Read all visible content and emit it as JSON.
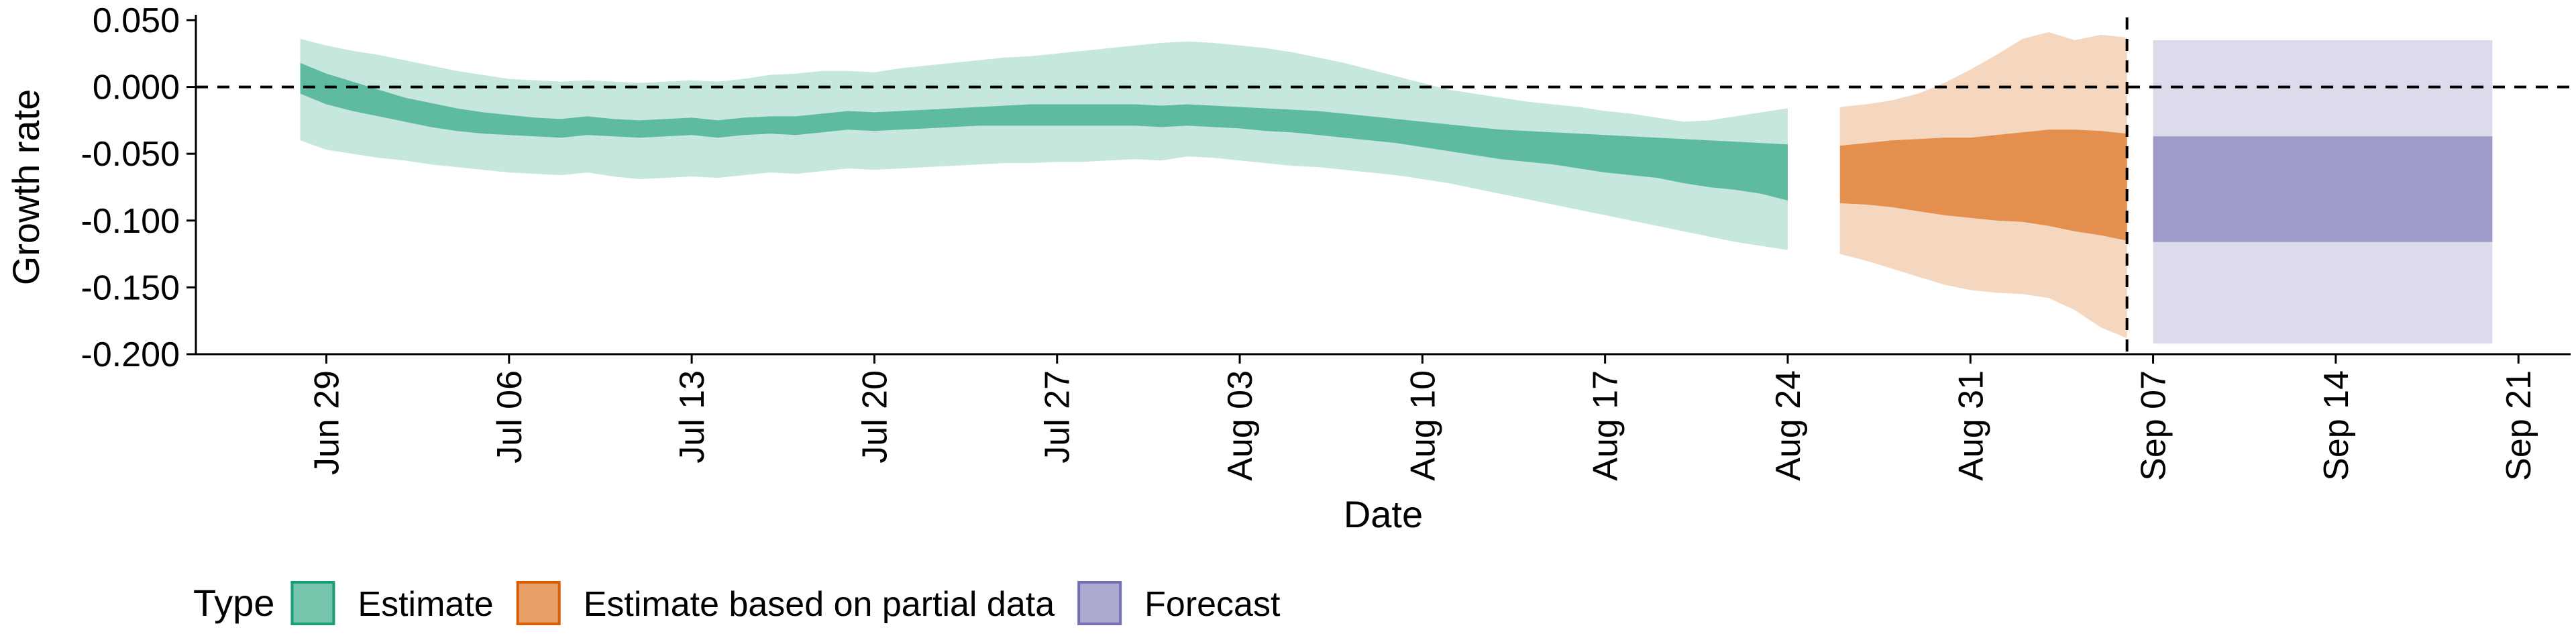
{
  "chart_data": {
    "type": "area",
    "title": "",
    "xlabel": "Date",
    "ylabel": "Growth rate",
    "ylim": [
      -0.2,
      0.05
    ],
    "y_ticks": [
      0.05,
      0.0,
      -0.05,
      -0.1,
      -0.15,
      -0.2
    ],
    "y_tick_labels": [
      "0.050",
      "0.000",
      "-0.050",
      "-0.100",
      "-0.150",
      "-0.200"
    ],
    "x_range": [
      "2020-06-24",
      "2020-09-23"
    ],
    "x_ticks": [
      "2020-06-29",
      "2020-07-06",
      "2020-07-13",
      "2020-07-20",
      "2020-07-27",
      "2020-08-03",
      "2020-08-10",
      "2020-08-17",
      "2020-08-24",
      "2020-08-31",
      "2020-09-07",
      "2020-09-14",
      "2020-09-21"
    ],
    "x_tick_labels": [
      "Jun 29",
      "Jul 06",
      "Jul 13",
      "Jul 20",
      "Jul 27",
      "Aug 03",
      "Aug 10",
      "Aug 17",
      "Aug 24",
      "Aug 31",
      "Sep 07",
      "Sep 14",
      "Sep 21"
    ],
    "reference_lines": {
      "horizontal_y": 0.0,
      "vertical_date": "2020-09-06"
    },
    "legend": {
      "title": "Type",
      "placement": "bottom",
      "entries": [
        {
          "key": "estimate",
          "label": "Estimate"
        },
        {
          "key": "partial",
          "label": "Estimate based on partial data"
        },
        {
          "key": "forecast",
          "label": "Forecast"
        }
      ]
    },
    "colors": {
      "estimate": "#1b9e77",
      "partial": "#d95f02",
      "forecast": "#7570b3"
    },
    "series": [
      {
        "key": "estimate",
        "x": [
          "2020-06-28",
          "2020-06-29",
          "2020-06-30",
          "2020-07-01",
          "2020-07-02",
          "2020-07-03",
          "2020-07-04",
          "2020-07-05",
          "2020-07-06",
          "2020-07-07",
          "2020-07-08",
          "2020-07-09",
          "2020-07-10",
          "2020-07-11",
          "2020-07-12",
          "2020-07-13",
          "2020-07-14",
          "2020-07-15",
          "2020-07-16",
          "2020-07-17",
          "2020-07-18",
          "2020-07-19",
          "2020-07-20",
          "2020-07-21",
          "2020-07-22",
          "2020-07-23",
          "2020-07-24",
          "2020-07-25",
          "2020-07-26",
          "2020-07-27",
          "2020-07-28",
          "2020-07-29",
          "2020-07-30",
          "2020-07-31",
          "2020-08-01",
          "2020-08-02",
          "2020-08-03",
          "2020-08-04",
          "2020-08-05",
          "2020-08-06",
          "2020-08-07",
          "2020-08-08",
          "2020-08-09",
          "2020-08-10",
          "2020-08-11",
          "2020-08-12",
          "2020-08-13",
          "2020-08-14",
          "2020-08-15",
          "2020-08-16",
          "2020-08-17",
          "2020-08-18",
          "2020-08-19",
          "2020-08-20",
          "2020-08-21",
          "2020-08-22",
          "2020-08-23",
          "2020-08-24"
        ],
        "lower_90": [
          -0.04,
          -0.047,
          -0.05,
          -0.053,
          -0.055,
          -0.058,
          -0.06,
          -0.062,
          -0.064,
          -0.065,
          -0.066,
          -0.064,
          -0.067,
          -0.069,
          -0.068,
          -0.067,
          -0.068,
          -0.066,
          -0.064,
          -0.065,
          -0.063,
          -0.061,
          -0.062,
          -0.061,
          -0.06,
          -0.059,
          -0.058,
          -0.057,
          -0.057,
          -0.056,
          -0.056,
          -0.055,
          -0.054,
          -0.055,
          -0.052,
          -0.053,
          -0.055,
          -0.057,
          -0.059,
          -0.06,
          -0.062,
          -0.064,
          -0.066,
          -0.069,
          -0.072,
          -0.076,
          -0.08,
          -0.084,
          -0.088,
          -0.092,
          -0.096,
          -0.1,
          -0.104,
          -0.108,
          -0.112,
          -0.116,
          -0.119,
          -0.122
        ],
        "lower_50": [
          -0.005,
          -0.013,
          -0.018,
          -0.022,
          -0.026,
          -0.03,
          -0.033,
          -0.035,
          -0.036,
          -0.037,
          -0.038,
          -0.036,
          -0.037,
          -0.038,
          -0.037,
          -0.036,
          -0.038,
          -0.036,
          -0.035,
          -0.036,
          -0.034,
          -0.032,
          -0.033,
          -0.032,
          -0.031,
          -0.03,
          -0.029,
          -0.029,
          -0.029,
          -0.029,
          -0.029,
          -0.029,
          -0.029,
          -0.03,
          -0.029,
          -0.03,
          -0.031,
          -0.033,
          -0.034,
          -0.036,
          -0.038,
          -0.04,
          -0.042,
          -0.045,
          -0.048,
          -0.051,
          -0.054,
          -0.056,
          -0.058,
          -0.061,
          -0.064,
          -0.066,
          -0.068,
          -0.072,
          -0.075,
          -0.077,
          -0.08,
          -0.085
        ],
        "upper_50": [
          0.018,
          0.01,
          0.004,
          -0.002,
          -0.008,
          -0.012,
          -0.016,
          -0.019,
          -0.021,
          -0.023,
          -0.024,
          -0.022,
          -0.024,
          -0.025,
          -0.024,
          -0.023,
          -0.025,
          -0.023,
          -0.022,
          -0.022,
          -0.02,
          -0.018,
          -0.019,
          -0.018,
          -0.017,
          -0.016,
          -0.015,
          -0.014,
          -0.013,
          -0.013,
          -0.013,
          -0.013,
          -0.013,
          -0.014,
          -0.013,
          -0.014,
          -0.015,
          -0.016,
          -0.017,
          -0.018,
          -0.02,
          -0.022,
          -0.024,
          -0.026,
          -0.028,
          -0.03,
          -0.032,
          -0.033,
          -0.034,
          -0.035,
          -0.036,
          -0.037,
          -0.038,
          -0.039,
          -0.04,
          -0.041,
          -0.042,
          -0.043
        ],
        "upper_90": [
          0.036,
          0.031,
          0.027,
          0.024,
          0.02,
          0.016,
          0.012,
          0.009,
          0.006,
          0.005,
          0.004,
          0.005,
          0.004,
          0.003,
          0.004,
          0.005,
          0.004,
          0.006,
          0.009,
          0.01,
          0.012,
          0.012,
          0.011,
          0.014,
          0.016,
          0.018,
          0.02,
          0.022,
          0.023,
          0.025,
          0.027,
          0.029,
          0.031,
          0.033,
          0.034,
          0.033,
          0.031,
          0.029,
          0.026,
          0.022,
          0.018,
          0.013,
          0.008,
          0.003,
          -0.002,
          -0.005,
          -0.008,
          -0.011,
          -0.013,
          -0.015,
          -0.018,
          -0.02,
          -0.023,
          -0.026,
          -0.025,
          -0.022,
          -0.019,
          -0.016
        ]
      },
      {
        "key": "partial",
        "x": [
          "2020-08-26",
          "2020-08-27",
          "2020-08-28",
          "2020-08-29",
          "2020-08-30",
          "2020-08-31",
          "2020-09-01",
          "2020-09-02",
          "2020-09-03",
          "2020-09-04",
          "2020-09-05",
          "2020-09-06"
        ],
        "lower_90": [
          -0.125,
          -0.13,
          -0.136,
          -0.142,
          -0.148,
          -0.152,
          -0.154,
          -0.155,
          -0.158,
          -0.167,
          -0.18,
          -0.188
        ],
        "lower_50": [
          -0.087,
          -0.088,
          -0.09,
          -0.093,
          -0.096,
          -0.098,
          -0.1,
          -0.101,
          -0.104,
          -0.108,
          -0.111,
          -0.115
        ],
        "upper_50": [
          -0.044,
          -0.042,
          -0.04,
          -0.039,
          -0.038,
          -0.038,
          -0.036,
          -0.034,
          -0.032,
          -0.032,
          -0.033,
          -0.035
        ],
        "upper_90": [
          -0.015,
          -0.013,
          -0.01,
          -0.005,
          0.003,
          0.013,
          0.024,
          0.036,
          0.041,
          0.035,
          0.039,
          0.037
        ]
      },
      {
        "key": "forecast",
        "x": [
          "2020-09-07",
          "2020-09-20"
        ],
        "lower_90": [
          -0.192,
          -0.192
        ],
        "lower_50": [
          -0.116,
          -0.116
        ],
        "upper_50": [
          -0.037,
          -0.037
        ],
        "upper_90": [
          0.035,
          0.035
        ]
      }
    ],
    "grid": false
  }
}
